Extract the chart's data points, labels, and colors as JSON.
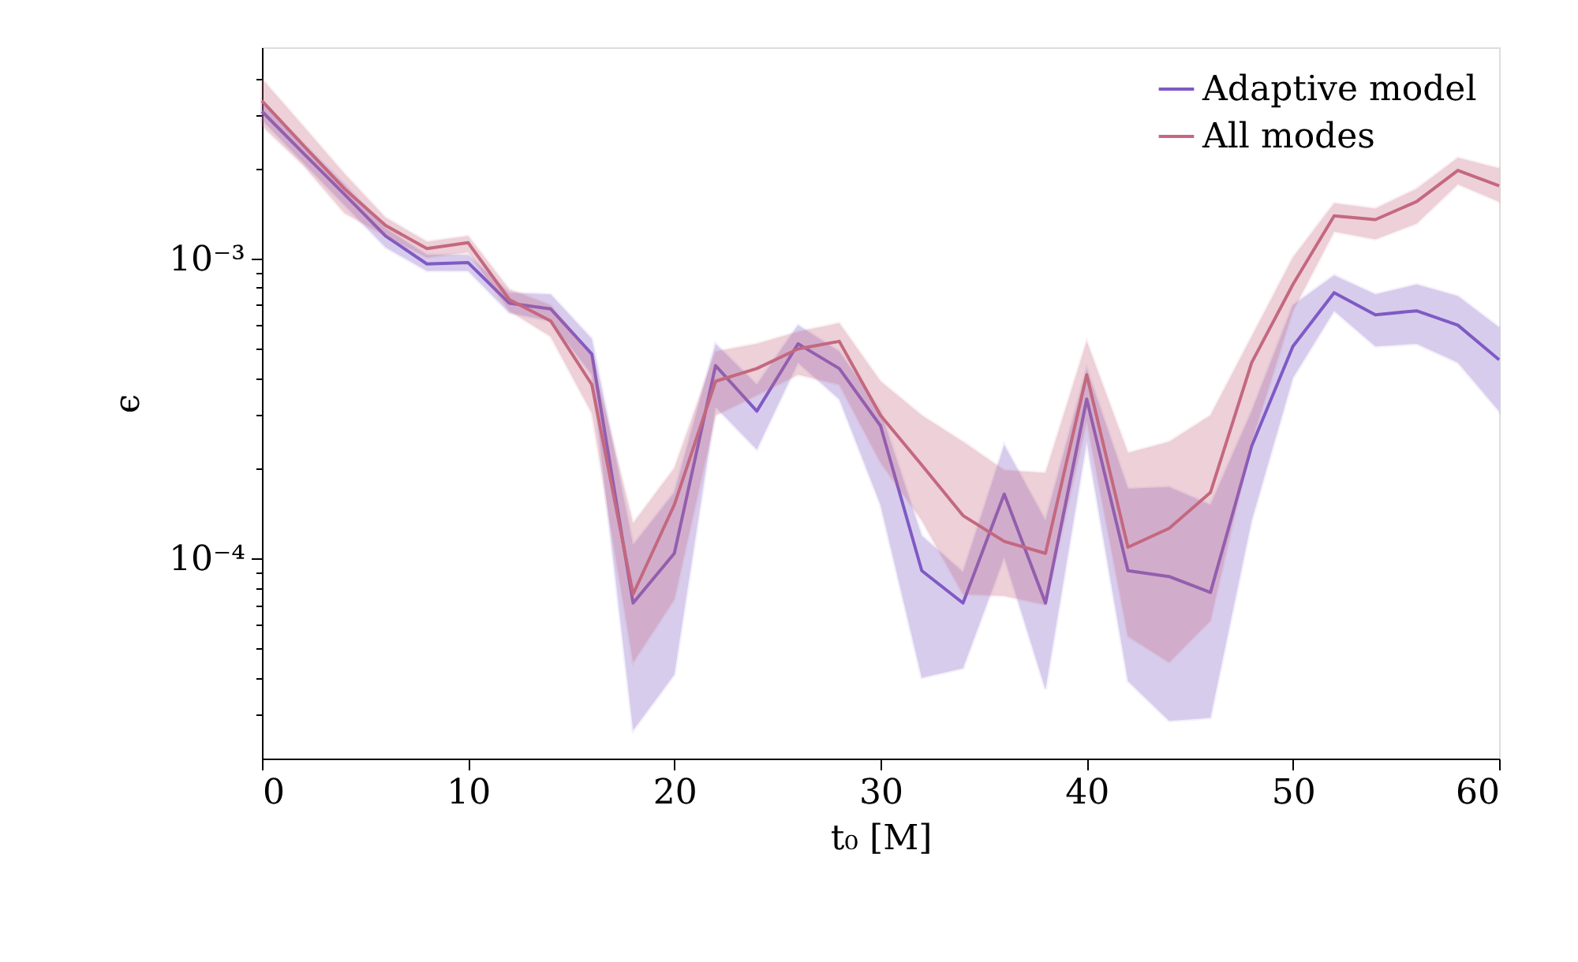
{
  "chart_data": {
    "type": "line",
    "xlabel": "t₀ [M]",
    "ylabel": "ϵ",
    "x": [
      0,
      2,
      4,
      6,
      8,
      10,
      12,
      14,
      16,
      18,
      20,
      22,
      24,
      26,
      28,
      30,
      32,
      34,
      36,
      38,
      40,
      42,
      44,
      46,
      48,
      50,
      52,
      54,
      56,
      58,
      60
    ],
    "series": [
      {
        "name": "Adaptive model",
        "color": "#7f5ac4",
        "values": [
          0.0031,
          0.00225,
          0.00164,
          0.00119,
          0.00096,
          0.00097,
          0.00071,
          0.00068,
          0.00048,
          7.1e-05,
          0.000104,
          0.00044,
          0.00031,
          0.00052,
          0.00043,
          0.000277,
          9.1e-05,
          7.1e-05,
          0.000164,
          7.1e-05,
          0.00034,
          9.1e-05,
          8.7e-05,
          7.7e-05,
          0.000237,
          0.00051,
          0.00077,
          0.00065,
          0.00067,
          0.0006,
          0.00046
        ],
        "lower": [
          0.0029,
          0.00209,
          0.00151,
          0.00109,
          0.00091,
          0.00091,
          0.00066,
          0.00062,
          0.00041,
          2.67e-05,
          4.1e-05,
          0.00032,
          0.000231,
          0.00045,
          0.00034,
          0.000151,
          4e-05,
          4.3e-05,
          0.000101,
          3.66e-05,
          0.000245,
          3.9e-05,
          2.87e-05,
          2.94e-05,
          0.000134,
          0.0004,
          0.00067,
          0.00051,
          0.00052,
          0.00045,
          0.00031
        ],
        "upper": [
          0.00336,
          0.00242,
          0.00177,
          0.00126,
          0.00103,
          0.00103,
          0.00077,
          0.00076,
          0.00054,
          0.000111,
          0.000166,
          0.00052,
          0.00038,
          0.0006,
          0.00049,
          0.00031,
          0.000119,
          9e-05,
          0.000239,
          0.000134,
          0.00043,
          0.000171,
          0.000173,
          0.000151,
          0.00031,
          0.0007,
          0.00088,
          0.00076,
          0.00082,
          0.00075,
          0.00059
        ]
      },
      {
        "name": "All modes",
        "color": "#c4687f",
        "values": [
          0.00336,
          0.00239,
          0.00171,
          0.00129,
          0.00108,
          0.00113,
          0.00073,
          0.00062,
          0.00038,
          7.6e-05,
          0.000151,
          0.00039,
          0.00043,
          0.0005,
          0.00053,
          0.0003,
          0.000205,
          0.000139,
          0.000114,
          0.000104,
          0.00041,
          0.000109,
          0.000126,
          0.000166,
          0.00045,
          0.00082,
          0.00139,
          0.00135,
          0.00155,
          0.00197,
          0.00175
        ],
        "lower": [
          0.00277,
          0.00205,
          0.00142,
          0.00119,
          0.00101,
          0.00105,
          0.00067,
          0.00055,
          0.000305,
          4.5e-05,
          7.3e-05,
          0.0003,
          0.00035,
          0.00041,
          0.00038,
          0.000209,
          0.000134,
          7.6e-05,
          7.5e-05,
          7e-05,
          0.000287,
          5.5e-05,
          4.5e-05,
          6.2e-05,
          0.000245,
          0.00067,
          0.00123,
          0.00116,
          0.00131,
          0.00177,
          0.00155
        ],
        "upper": [
          0.00398,
          0.00277,
          0.00192,
          0.00137,
          0.00114,
          0.00119,
          0.00079,
          0.0007,
          0.00047,
          0.000131,
          0.0002,
          0.00049,
          0.00052,
          0.00057,
          0.00061,
          0.00039,
          0.0003,
          0.000245,
          0.000197,
          0.000193,
          0.00053,
          0.000225,
          0.000245,
          0.0003,
          0.00055,
          0.00101,
          0.00153,
          0.00147,
          0.00171,
          0.00217,
          0.002
        ]
      }
    ],
    "xlim": [
      0,
      60
    ],
    "xticks": [
      0,
      10,
      20,
      30,
      40,
      50,
      60
    ],
    "ylim": [
      2.15e-05,
      0.00507
    ],
    "log": true,
    "yticks": [
      {
        "value": 3e-05,
        "label": null
      },
      {
        "value": 4e-05,
        "label": null
      },
      {
        "value": 5e-05,
        "label": null
      },
      {
        "value": 6e-05,
        "label": null
      },
      {
        "value": 7e-05,
        "label": null
      },
      {
        "value": 8e-05,
        "label": null
      },
      {
        "value": 9e-05,
        "label": null
      },
      {
        "value": 0.0001,
        "label": "10⁻⁴"
      },
      {
        "value": 0.0002,
        "label": null
      },
      {
        "value": 0.0003,
        "label": null
      },
      {
        "value": 0.0004,
        "label": null
      },
      {
        "value": 0.0005,
        "label": null
      },
      {
        "value": 0.0006,
        "label": null
      },
      {
        "value": 0.0007,
        "label": null
      },
      {
        "value": 0.0008,
        "label": null
      },
      {
        "value": 0.0009,
        "label": null
      },
      {
        "value": 0.001,
        "label": "10⁻³"
      },
      {
        "value": 0.002,
        "label": null
      },
      {
        "value": 0.003,
        "label": null
      },
      {
        "value": 0.004,
        "label": null
      }
    ],
    "legend": "top right",
    "grid": false,
    "line_style": "solid",
    "marker": "none"
  }
}
